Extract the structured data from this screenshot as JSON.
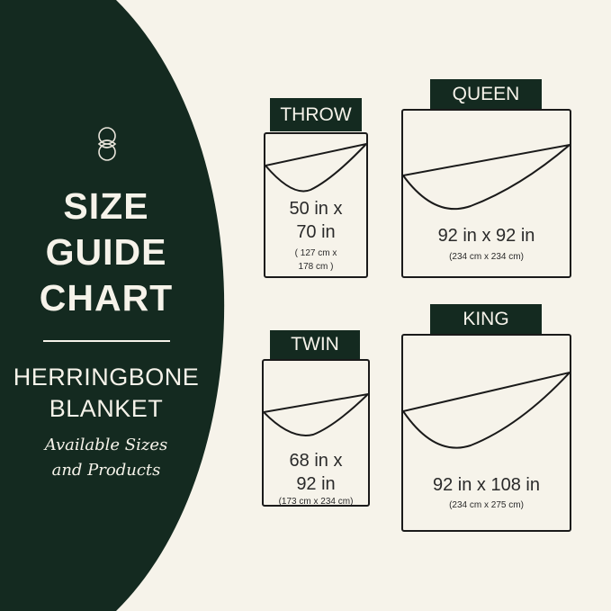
{
  "colors": {
    "dark_green": "#142a20",
    "cream": "#f6f3ea"
  },
  "logo_icon": "interlocking-rings-icon",
  "title": [
    "SIZE",
    "GUIDE",
    "CHART"
  ],
  "product": [
    "HERRINGBONE",
    "BLANKET"
  ],
  "subtitle": [
    "Available Sizes",
    "and Products"
  ],
  "sizes": [
    {
      "name": "THROW",
      "imperial": [
        "50 in x",
        "70 in"
      ],
      "metric": [
        "( 127 cm x",
        "178 cm )"
      ]
    },
    {
      "name": "QUEEN",
      "imperial": [
        "92 in x 92 in"
      ],
      "metric": [
        "(234 cm x 234 cm)"
      ]
    },
    {
      "name": "TWIN",
      "imperial": [
        "68 in x",
        "92 in"
      ],
      "metric": [
        "(173 cm x 234 cm)"
      ]
    },
    {
      "name": "KING",
      "imperial": [
        "92 in x 108 in"
      ],
      "metric": [
        "(234 cm x 275 cm)"
      ]
    }
  ]
}
